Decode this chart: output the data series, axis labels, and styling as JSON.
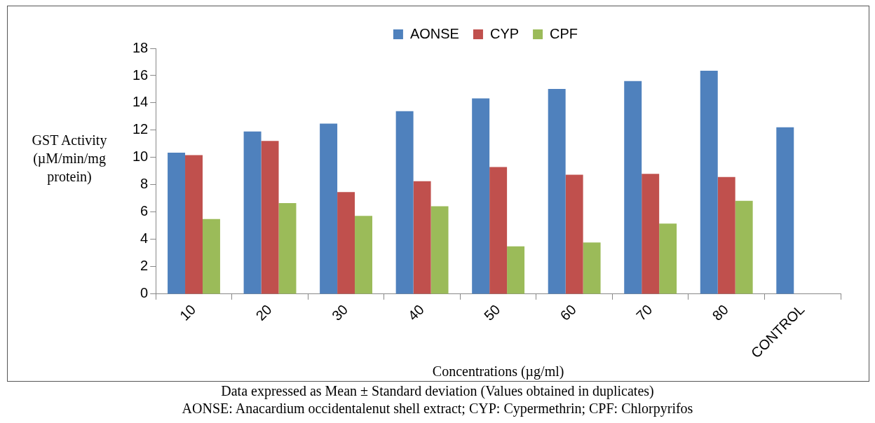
{
  "chart_data": {
    "type": "bar",
    "xlabel": "Concentrations (µg/ml)",
    "ylabel": "GST Activity (µM/min/mg protein)",
    "categories": [
      "10",
      "20",
      "30",
      "40",
      "50",
      "60",
      "70",
      "80",
      "CONTROL"
    ],
    "series": [
      {
        "name": "AONSE",
        "color": "#4f81bd",
        "values": [
          10.36,
          11.91,
          12.49,
          13.4,
          14.33,
          15.03,
          15.6,
          16.36,
          12.21
        ]
      },
      {
        "name": "CYP",
        "color": "#c0504d",
        "values": [
          10.18,
          11.22,
          7.47,
          8.27,
          9.31,
          8.74,
          8.8,
          8.57,
          null
        ]
      },
      {
        "name": "CPF",
        "color": "#9bbb59",
        "values": [
          5.5,
          6.66,
          5.73,
          6.43,
          3.49,
          3.78,
          5.16,
          6.83,
          null
        ]
      }
    ],
    "ylim": [
      0,
      18
    ],
    "yticks": [
      0,
      2,
      4,
      6,
      8,
      10,
      12,
      14,
      16,
      18
    ],
    "grid": false,
    "legend": "top",
    "annotations": [
      "Data expressed as Mean ± Standard deviation (Values obtained in duplicates)",
      "AONSE: Anacardium occidentalenut shell extract; CYP: Cypermethrin; CPF: Chlorpyrifos"
    ]
  }
}
